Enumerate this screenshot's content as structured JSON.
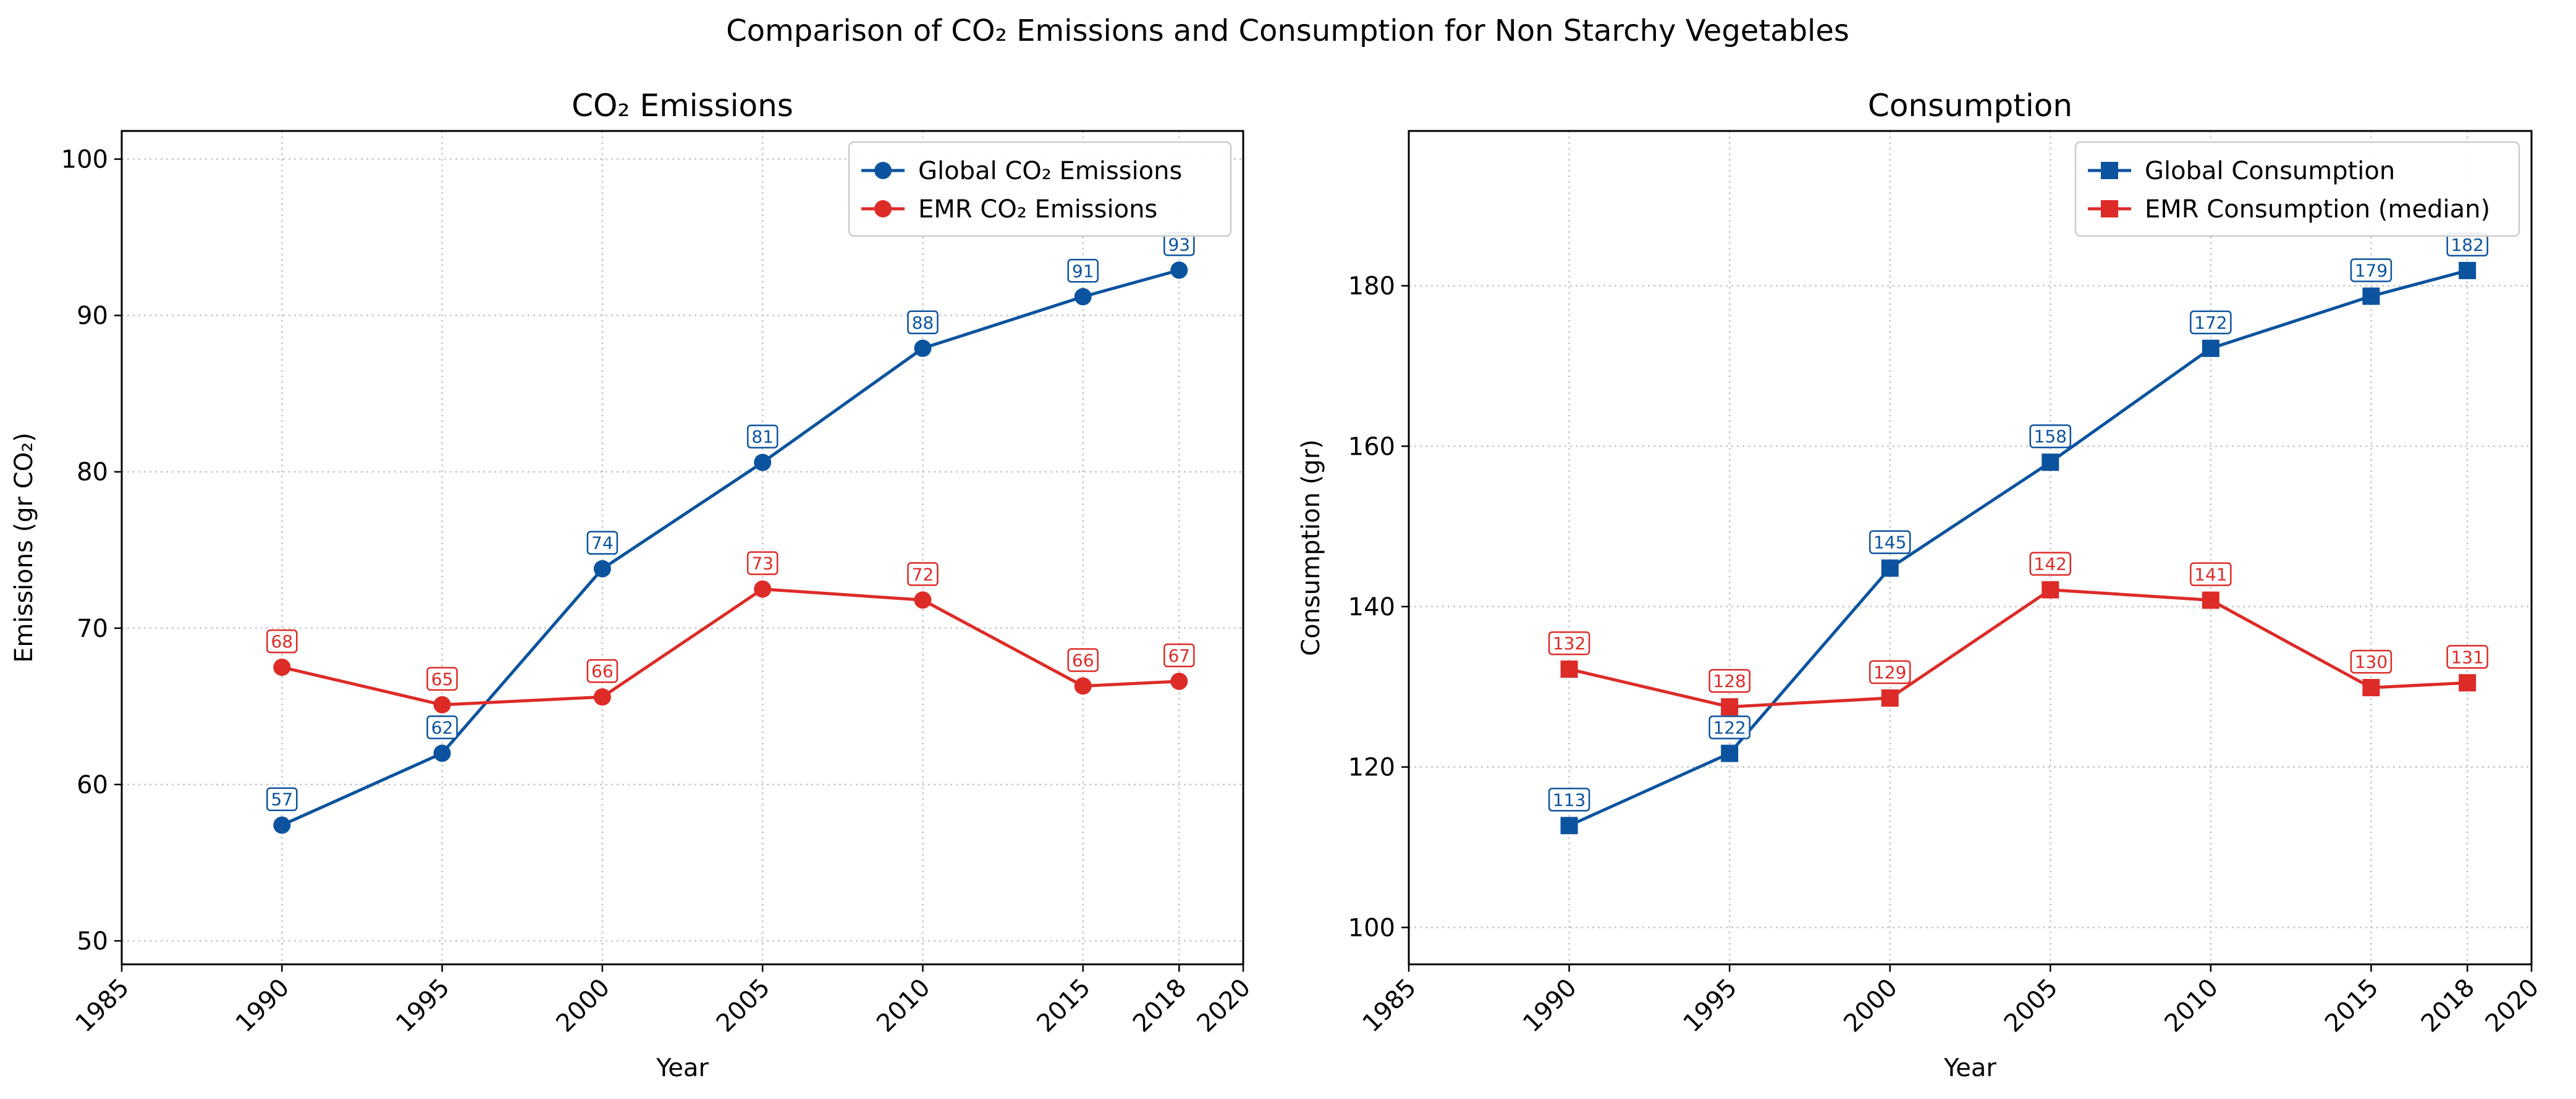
{
  "figure": {
    "title": "Comparison of CO₂ Emissions and Consumption for Non Starchy Vegetables"
  },
  "chart_data": [
    {
      "type": "line",
      "title": "CO₂ Emissions",
      "xlabel": "Year",
      "ylabel": "Emissions (gr CO₂)",
      "xlim": [
        1985,
        2020
      ],
      "ylim": [
        48.5,
        101.8
      ],
      "xticks": [
        1985,
        1990,
        1995,
        2000,
        2005,
        2010,
        2015,
        2018,
        2020
      ],
      "yticks": [
        50,
        60,
        70,
        80,
        90,
        100
      ],
      "grid": true,
      "legend_position": "top-right",
      "marker": "circle",
      "x": [
        1990,
        1995,
        2000,
        2005,
        2010,
        2015,
        2018
      ],
      "series": [
        {
          "name": "Global CO₂ Emissions",
          "color": "#0b539e",
          "values": [
            57.4,
            62.0,
            73.8,
            80.6,
            87.9,
            91.2,
            92.9
          ],
          "labels": [
            "57",
            "62",
            "74",
            "81",
            "88",
            "91",
            "93"
          ]
        },
        {
          "name": "EMR CO₂ Emissions",
          "color": "#dd2b27",
          "values": [
            67.5,
            65.1,
            65.6,
            72.5,
            71.8,
            66.3,
            66.6
          ],
          "labels": [
            "68",
            "65",
            "66",
            "73",
            "72",
            "66",
            "67"
          ]
        }
      ]
    },
    {
      "type": "line",
      "title": "Consumption",
      "xlabel": "Year",
      "ylabel": "Consumption (gr)",
      "xlim": [
        1985,
        2020
      ],
      "ylim": [
        95.4,
        199.3
      ],
      "xticks": [
        1985,
        1990,
        1995,
        2000,
        2005,
        2010,
        2015,
        2018,
        2020
      ],
      "yticks": [
        100,
        120,
        140,
        160,
        180
      ],
      "grid": true,
      "legend_position": "top-right",
      "marker": "square",
      "x": [
        1990,
        1995,
        2000,
        2005,
        2010,
        2015,
        2018
      ],
      "series": [
        {
          "name": "Global Consumption",
          "color": "#0b539e",
          "values": [
            112.7,
            121.7,
            144.8,
            158.0,
            172.2,
            178.7,
            181.9
          ],
          "labels": [
            "113",
            "122",
            "145",
            "158",
            "172",
            "179",
            "182"
          ]
        },
        {
          "name": "EMR Consumption (median)",
          "color": "#dd2b27",
          "values": [
            132.2,
            127.5,
            128.6,
            142.1,
            140.8,
            129.9,
            130.5
          ],
          "labels": [
            "132",
            "128",
            "129",
            "142",
            "141",
            "130",
            "131"
          ]
        }
      ]
    }
  ]
}
